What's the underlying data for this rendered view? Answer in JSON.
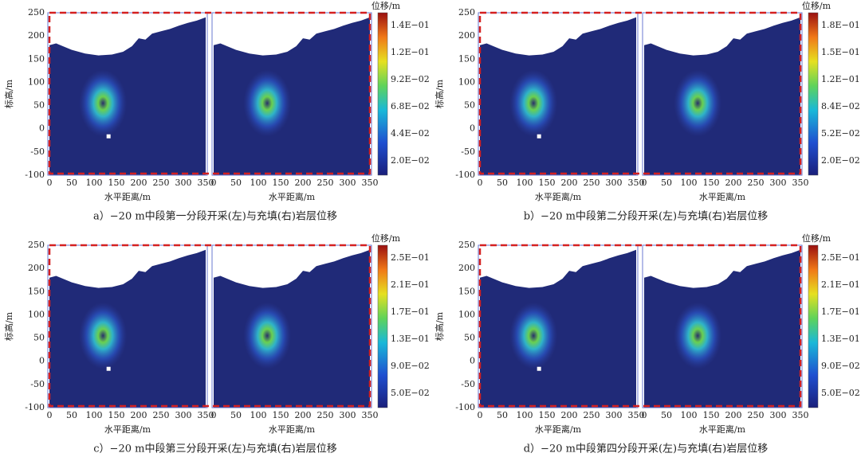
{
  "axes": {
    "xlabel": "水平距离/m",
    "ylabel": "标高/m",
    "xticks": [
      0,
      50,
      100,
      150,
      200,
      250,
      300,
      350
    ],
    "yticks": [
      -100,
      -50,
      0,
      50,
      100,
      150,
      200,
      250
    ],
    "xlim": [
      0,
      350
    ],
    "ylim": [
      -100,
      250
    ]
  },
  "panels": [
    {
      "caption": "a）−20 m中段第一分段开采(左)与充填(右)岩层位移",
      "colorbar": {
        "title": "位移/m",
        "labels": [
          "2.0E−02",
          "4.4E−02",
          "6.8E−02",
          "9.2E−02",
          "1.2E−01",
          "1.4E−01"
        ]
      }
    },
    {
      "caption": "b）−20 m中段第二分段开采(左)与充填(右)岩层位移",
      "colorbar": {
        "title": "位移/m",
        "labels": [
          "2.0E−02",
          "5.2E−02",
          "8.4E−02",
          "1.2E−01",
          "1.5E−01",
          "1.8E−01"
        ]
      }
    },
    {
      "caption": "c）−20 m中段第三分段开采(左)与充填(右)岩层位移",
      "colorbar": {
        "title": "位移/m",
        "labels": [
          "5.0E−02",
          "9.0E−02",
          "1.3E−01",
          "1.7E−01",
          "2.1E−01",
          "2.5E−01"
        ]
      }
    },
    {
      "caption": "d）−20 m中段第四分段开采(左)与充填(右)岩层位移",
      "colorbar": {
        "title": "位移/m",
        "labels": [
          "5.0E−02",
          "9.0E−02",
          "1.3E−01",
          "1.7E−01",
          "2.1E−01",
          "2.5E−01"
        ]
      }
    }
  ]
}
